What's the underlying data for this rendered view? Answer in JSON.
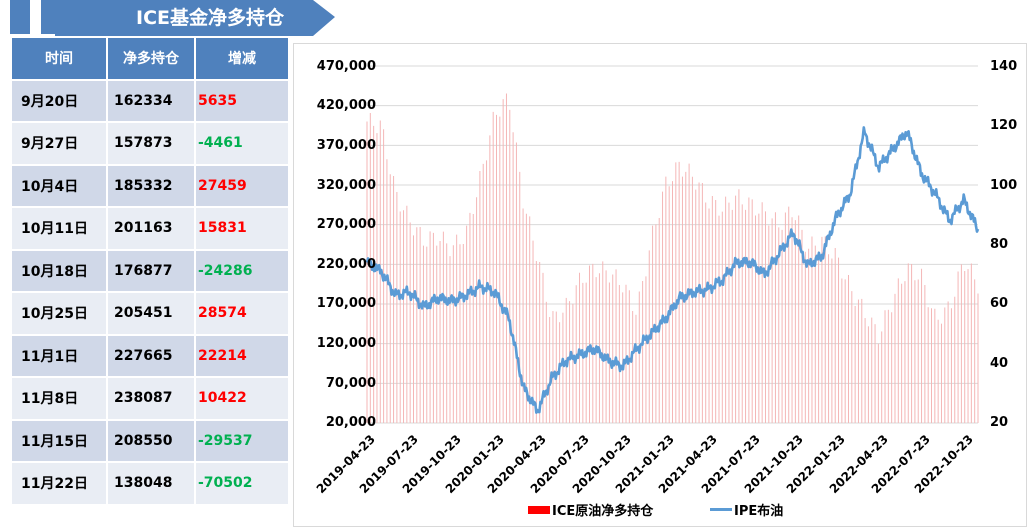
{
  "banner": {
    "title": "ICE基金净多持仓",
    "color": "#4f81bd"
  },
  "table": {
    "headers": [
      "时间",
      "净多持仓",
      "增减"
    ],
    "rows": [
      {
        "date": "9月20日",
        "net": "162334",
        "change": "5635",
        "dir": "pos"
      },
      {
        "date": "9月27日",
        "net": "157873",
        "change": "-4461",
        "dir": "neg"
      },
      {
        "date": "10月4日",
        "net": "185332",
        "change": "27459",
        "dir": "pos"
      },
      {
        "date": "10月11日",
        "net": "201163",
        "change": "15831",
        "dir": "pos"
      },
      {
        "date": "10月18日",
        "net": "176877",
        "change": "-24286",
        "dir": "neg"
      },
      {
        "date": "10月25日",
        "net": "205451",
        "change": "28574",
        "dir": "pos"
      },
      {
        "date": "11月1日",
        "net": "227665",
        "change": "22214",
        "dir": "pos"
      },
      {
        "date": "11月8日",
        "net": "238087",
        "change": "10422",
        "dir": "pos"
      },
      {
        "date": "11月15日",
        "net": "208550",
        "change": "-29537",
        "dir": "neg"
      },
      {
        "date": "11月22日",
        "net": "138048",
        "change": "-70502",
        "dir": "neg"
      }
    ],
    "colors": {
      "header": "#4f81bd",
      "row_dark": "#d0d8e8",
      "row_light": "#e9edf4",
      "positive": "#ff0000",
      "negative": "#00b050"
    }
  },
  "chart_data": {
    "type": "bar+line",
    "title": "",
    "categories": [
      "2019-04-23",
      "2019-07-23",
      "2019-10-23",
      "2020-01-23",
      "2020-04-23",
      "2020-07-23",
      "2020-10-23",
      "2021-01-23",
      "2021-04-23",
      "2021-07-23",
      "2021-10-23",
      "2022-01-23",
      "2022-04-23",
      "2022-07-23",
      "2022-10-23"
    ],
    "left_axis": {
      "label": "",
      "ticks": [
        "470,000",
        "420,000",
        "370,000",
        "320,000",
        "270,000",
        "220,000",
        "170,000",
        "120,000",
        "70,000",
        "20,000"
      ],
      "ylim": [
        20000,
        470000
      ]
    },
    "right_axis": {
      "label": "",
      "ticks": [
        "140",
        "120",
        "100",
        "80",
        "60",
        "40",
        "20"
      ],
      "ylim": [
        20,
        140
      ]
    },
    "grid": true,
    "legend_position": "bottom",
    "series": [
      {
        "name": "ICE原油净多持仓",
        "type": "bar",
        "axis": "left",
        "color": "#ff0000",
        "x": [
          "2019-04-23",
          "2019-05-23",
          "2019-06-23",
          "2019-07-23",
          "2019-08-23",
          "2019-09-23",
          "2019-10-23",
          "2019-11-23",
          "2019-12-23",
          "2020-01-23",
          "2020-02-23",
          "2020-03-23",
          "2020-04-23",
          "2020-05-23",
          "2020-06-23",
          "2020-07-23",
          "2020-08-23",
          "2020-09-23",
          "2020-10-23",
          "2020-11-23",
          "2020-12-23",
          "2021-01-23",
          "2021-02-23",
          "2021-03-23",
          "2021-04-23",
          "2021-05-23",
          "2021-06-23",
          "2021-07-23",
          "2021-08-23",
          "2021-09-23",
          "2021-10-23",
          "2021-11-23",
          "2021-12-23",
          "2022-01-23",
          "2022-02-23",
          "2022-03-23",
          "2022-04-23",
          "2022-05-23",
          "2022-06-23",
          "2022-07-23",
          "2022-08-23",
          "2022-09-23",
          "2022-10-23",
          "2022-11-23"
        ],
        "values": [
          400000,
          395000,
          310000,
          275000,
          250000,
          255000,
          240000,
          260000,
          330000,
          410000,
          430000,
          300000,
          230000,
          150000,
          165000,
          200000,
          215000,
          210000,
          195000,
          160000,
          250000,
          320000,
          345000,
          330000,
          300000,
          290000,
          305000,
          295000,
          285000,
          270000,
          290000,
          240000,
          250000,
          230000,
          190000,
          160000,
          130000,
          175000,
          215000,
          205000,
          150000,
          165000,
          225000,
          195000
        ]
      },
      {
        "name": "IPE布油",
        "type": "line",
        "axis": "right",
        "color": "#5b9bd5",
        "x": [
          "2019-04-23",
          "2019-05-23",
          "2019-06-23",
          "2019-07-23",
          "2019-08-23",
          "2019-09-23",
          "2019-10-23",
          "2019-11-23",
          "2019-12-23",
          "2020-01-23",
          "2020-02-23",
          "2020-03-23",
          "2020-04-23",
          "2020-05-23",
          "2020-06-23",
          "2020-07-23",
          "2020-08-23",
          "2020-09-23",
          "2020-10-23",
          "2020-11-23",
          "2020-12-23",
          "2021-01-23",
          "2021-02-23",
          "2021-03-23",
          "2021-04-23",
          "2021-05-23",
          "2021-06-23",
          "2021-07-23",
          "2021-08-23",
          "2021-09-23",
          "2021-10-23",
          "2021-11-23",
          "2021-12-23",
          "2022-01-23",
          "2022-02-23",
          "2022-03-23",
          "2022-04-23",
          "2022-05-23",
          "2022-06-23",
          "2022-07-23",
          "2022-08-23",
          "2022-09-23",
          "2022-10-23",
          "2022-11-23"
        ],
        "values": [
          74,
          71,
          63,
          64,
          59,
          62,
          61,
          63,
          66,
          64,
          55,
          32,
          24,
          35,
          41,
          43,
          45,
          41,
          39,
          45,
          50,
          55,
          62,
          64,
          65,
          68,
          74,
          74,
          70,
          77,
          84,
          73,
          76,
          89,
          97,
          118,
          106,
          112,
          118,
          104,
          97,
          88,
          95,
          85
        ]
      }
    ]
  },
  "legend": {
    "bar_label": "ICE原油净多持仓",
    "line_label": "IPE布油"
  }
}
